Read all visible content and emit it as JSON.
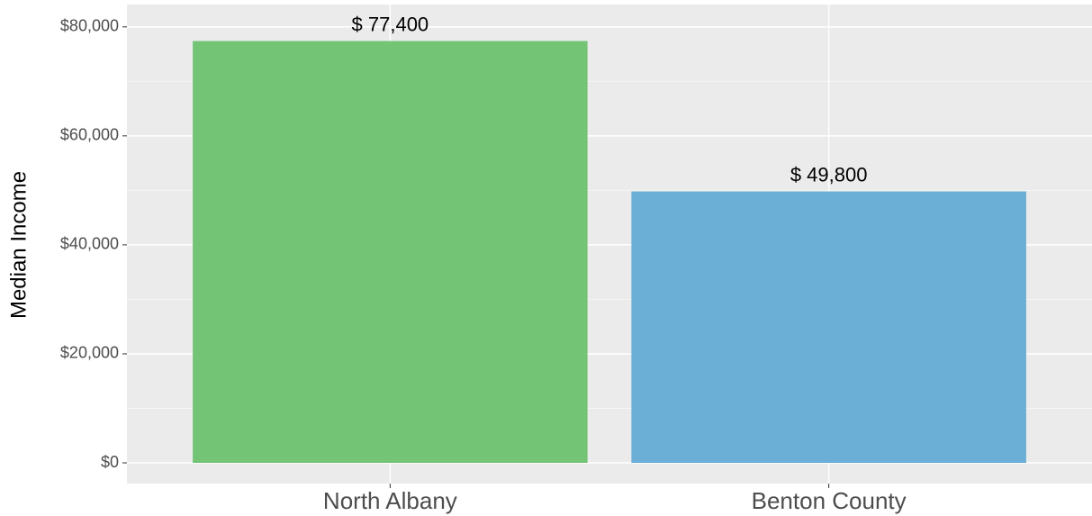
{
  "chart_data": {
    "type": "bar",
    "y_label": "Median Income",
    "categories": [
      "North Albany",
      "Benton County"
    ],
    "values": [
      77400,
      49800
    ],
    "value_labels": [
      "$ 77,400",
      "$ 49,800"
    ],
    "colors": [
      "#74c476",
      "#6baed6"
    ],
    "ylim": [
      -3800,
      84100
    ],
    "yticks": [
      {
        "value": 0,
        "label": "$0"
      },
      {
        "value": 20000,
        "label": "$20,000"
      },
      {
        "value": 40000,
        "label": "$40,000"
      },
      {
        "value": 60000,
        "label": "$60,000"
      },
      {
        "value": 80000,
        "label": "$80,000"
      }
    ],
    "grid": true
  }
}
